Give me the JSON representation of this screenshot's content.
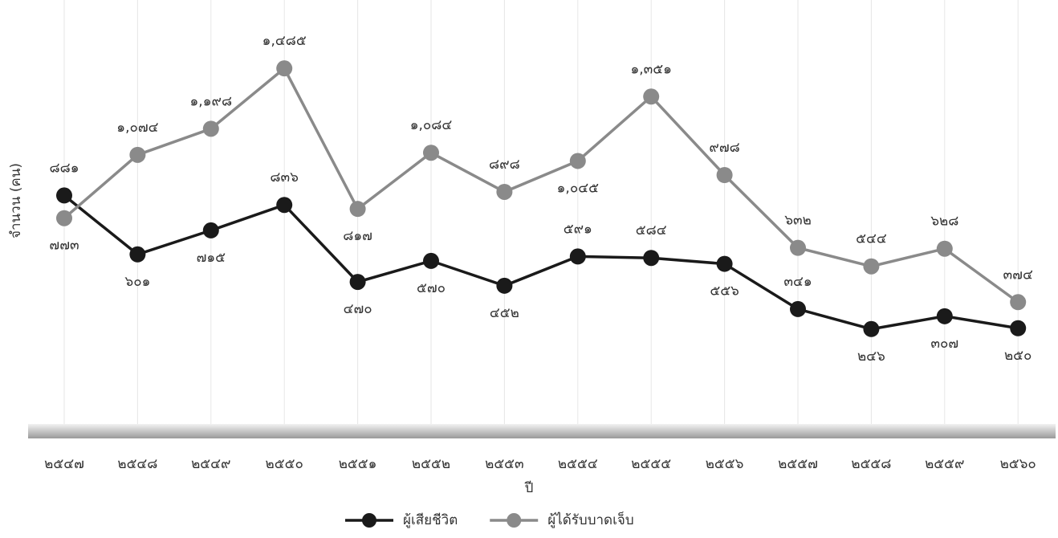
{
  "chart_data": {
    "type": "line",
    "x_label": "ปี",
    "y_label": "จำนวน (คน)",
    "categories": [
      "๒๕๔๗",
      "๒๕๔๘",
      "๒๕๔๙",
      "๒๕๕๐",
      "๒๕๕๑",
      "๒๕๕๒",
      "๒๕๕๓",
      "๒๕๕๔",
      "๒๕๕๕",
      "๒๕๕๖",
      "๒๕๕๗",
      "๒๕๕๘",
      "๒๕๕๙",
      "๒๕๖๐"
    ],
    "series": [
      {
        "name": "ผู้เสียชีวิต",
        "color": "#1a1a1a",
        "values": [
          881,
          601,
          715,
          836,
          470,
          570,
          452,
          591,
          584,
          556,
          341,
          246,
          307,
          250
        ],
        "value_labels": [
          "๘๘๑",
          "๖๐๑",
          "๗๑๕",
          "๘๓๖",
          "๔๗๐",
          "๕๗๐",
          "๔๕๒",
          "๕๙๑",
          "๕๘๔",
          "๕๕๖",
          "๓๔๑",
          "๒๔๖",
          "๓๐๗",
          "๒๕๐"
        ]
      },
      {
        "name": "ผู้ได้รับบาดเจ็บ",
        "color": "#8a8a8a",
        "values": [
          773,
          1074,
          1198,
          1485,
          817,
          1084,
          898,
          1045,
          1351,
          978,
          632,
          544,
          628,
          374
        ],
        "value_labels": [
          "๗๗๓",
          "๑,๐๗๔",
          "๑,๑๙๘",
          "๑,๔๘๕",
          "๘๑๗",
          "๑,๐๘๔",
          "๘๙๘",
          "๑,๐๔๕",
          "๑,๓๕๑",
          "๙๗๘",
          "๖๓๒",
          "๕๔๔",
          "๖๒๘",
          "๓๗๔"
        ]
      }
    ],
    "ylim": [
      -270,
      1810
    ],
    "legend": "bottom"
  }
}
